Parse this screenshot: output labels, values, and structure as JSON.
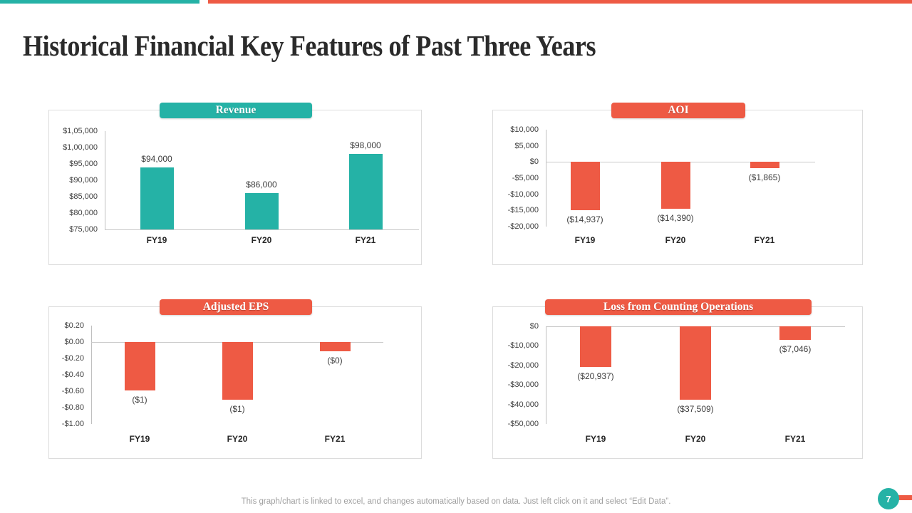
{
  "slide": {
    "title": "Historical Financial Key Features of Past Three Years",
    "footer": "This graph/chart is linked to excel, and changes automatically based on data. Just left click on it and select “Edit Data”.",
    "page_number": "7",
    "colors": {
      "teal": "#25b2a6",
      "red": "#ee5a44",
      "title_text": "#2b2b2b",
      "tick_text": "#404040",
      "axis_line": "#bfbfbf",
      "panel_border": "#dcdcdc",
      "footer_text": "#a0a0a0"
    }
  },
  "chart_data": [
    {
      "type": "bar",
      "title": "Revenue",
      "categories": [
        "FY19",
        "FY20",
        "FY21"
      ],
      "values": [
        94000,
        86000,
        98000
      ],
      "data_labels": [
        "$94,000",
        "$86,000",
        "$98,000"
      ],
      "y_ticks": [
        "$1,05,000",
        "$1,00,000",
        "$95,000",
        "$90,000",
        "$85,000",
        "$80,000",
        "$75,000"
      ],
      "ylim": [
        75000,
        105000
      ],
      "baseline": 75000,
      "bar_color_key": "teal",
      "label_position": "above",
      "grid": false,
      "legend": "none"
    },
    {
      "type": "bar",
      "title": "AOI",
      "categories": [
        "FY19",
        "FY20",
        "FY21"
      ],
      "values": [
        -14937,
        -14390,
        -1865
      ],
      "data_labels": [
        "($14,937)",
        "($14,390)",
        "($1,865)"
      ],
      "y_ticks": [
        "$10,000",
        "$5,000",
        "$0",
        "-$5,000",
        "-$10,000",
        "-$15,000",
        "-$20,000"
      ],
      "ylim": [
        -20000,
        10000
      ],
      "baseline": 0,
      "bar_color_key": "red",
      "label_position": "below",
      "grid": false,
      "legend": "none"
    },
    {
      "type": "bar",
      "title": "Adjusted EPS",
      "categories": [
        "FY19",
        "FY20",
        "FY21"
      ],
      "values": [
        -0.59,
        -0.7,
        -0.11
      ],
      "data_labels": [
        "($1)",
        "($1)",
        "($0)"
      ],
      "y_ticks": [
        "$0.20",
        "$0.00",
        "-$0.20",
        "-$0.40",
        "-$0.60",
        "-$0.80",
        "-$1.00"
      ],
      "ylim": [
        -1.0,
        0.2
      ],
      "baseline": 0,
      "bar_color_key": "red",
      "label_position": "below",
      "grid": false,
      "legend": "none"
    },
    {
      "type": "bar",
      "title": "Loss from Counting Operations",
      "categories": [
        "FY19",
        "FY20",
        "FY21"
      ],
      "values": [
        -20937,
        -37509,
        -7046
      ],
      "data_labels": [
        "($20,937)",
        "($37,509)",
        "($7,046)"
      ],
      "y_ticks": [
        "$0",
        "-$10,000",
        "-$20,000",
        "-$30,000",
        "-$40,000",
        "-$50,000"
      ],
      "ylim": [
        -50000,
        0
      ],
      "baseline": 0,
      "bar_color_key": "red",
      "label_position": "below",
      "grid": false,
      "legend": "none"
    }
  ]
}
